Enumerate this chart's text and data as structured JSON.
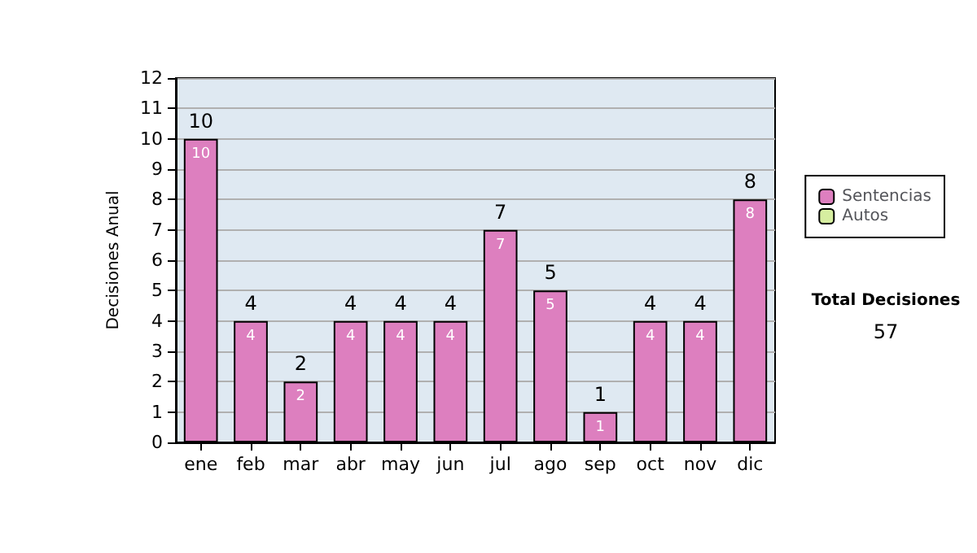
{
  "chart_data": {
    "type": "bar",
    "stacked": true,
    "ylabel": "Decisiones Anual",
    "categories": [
      "ene",
      "feb",
      "mar",
      "abr",
      "may",
      "jun",
      "jul",
      "ago",
      "sep",
      "oct",
      "nov",
      "dic"
    ],
    "series": [
      {
        "name": "Sentencias",
        "color": "#dd7fbf",
        "values": [
          10,
          4,
          2,
          4,
          4,
          4,
          7,
          5,
          1,
          4,
          4,
          8
        ]
      },
      {
        "name": "Autos",
        "color": "#d6eea0",
        "values": [
          null,
          null,
          null,
          null,
          null,
          null,
          null,
          null,
          null,
          null,
          null,
          null
        ]
      }
    ],
    "totals": [
      "10",
      "4",
      "2",
      "4",
      "4",
      "4",
      "7",
      "5",
      "1",
      "4",
      "4",
      "8"
    ],
    "data_labels": true,
    "ylim": [
      0,
      12
    ],
    "yticks": [
      0,
      1,
      2,
      3,
      4,
      5,
      6,
      7,
      8,
      9,
      10,
      11,
      12
    ],
    "grid": "y",
    "legend": "right",
    "annotations": [
      "Total Decisiones",
      "57"
    ]
  }
}
